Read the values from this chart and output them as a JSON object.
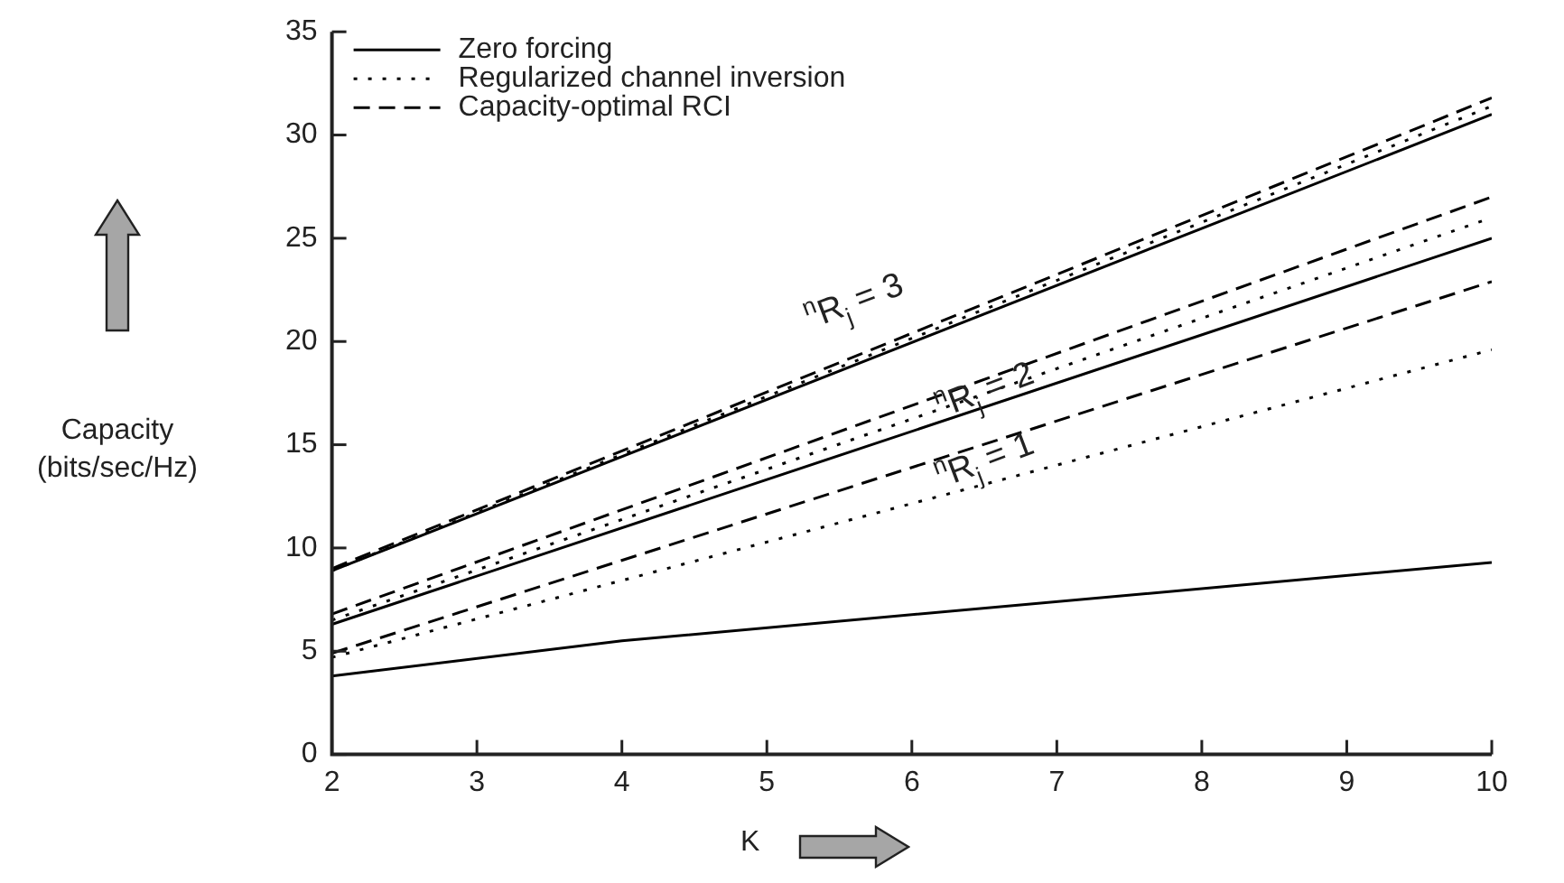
{
  "chart_data": {
    "type": "line",
    "xlabel": "K",
    "ylabel": "Capacity\n(bits/sec/Hz)",
    "xlim": [
      2,
      10
    ],
    "xticks": [
      2,
      3,
      4,
      5,
      6,
      7,
      8,
      9,
      10
    ],
    "ylim": [
      0,
      35
    ],
    "yticks": [
      0,
      5,
      10,
      15,
      20,
      25,
      30,
      35
    ],
    "grid": false,
    "legend": "top left",
    "marker": "none",
    "series": [
      {
        "name": "Zero forcing",
        "color": "#000000",
        "line_style": "solid",
        "x": [
          2,
          10
        ],
        "values": [
          8.9,
          31.0
        ]
      },
      {
        "name": "Regularized channel inversion",
        "color": "#000000",
        "line_style": "dotted",
        "x": [
          2,
          10
        ],
        "values": [
          8.9,
          31.4
        ]
      },
      {
        "name": "Capacity-optimal RCI",
        "color": "#000000",
        "line_style": "dashed",
        "x": [
          2,
          10
        ],
        "values": [
          9.0,
          31.8
        ]
      },
      {
        "color": "#000000",
        "line_style": "solid",
        "x": [
          2,
          10
        ],
        "values": [
          6.3,
          25.0
        ]
      },
      {
        "color": "#000000",
        "line_style": "dotted",
        "x": [
          2,
          10
        ],
        "values": [
          6.5,
          26.0
        ]
      },
      {
        "color": "#000000",
        "line_style": "dashed",
        "x": [
          2,
          10
        ],
        "values": [
          6.8,
          27.0
        ]
      },
      {
        "color": "#000000",
        "line_style": "solid",
        "x": [
          2,
          4,
          10
        ],
        "values": [
          3.8,
          5.5,
          9.3
        ]
      },
      {
        "color": "#000000",
        "line_style": "dotted",
        "x": [
          2,
          10
        ],
        "values": [
          4.7,
          19.6
        ]
      },
      {
        "color": "#000000",
        "line_style": "dashed",
        "x": [
          2,
          10
        ],
        "values": [
          4.9,
          22.9
        ]
      }
    ],
    "annotations": [
      "$^{n}$R$_{j}$ = 3",
      "$^{n}$R$_{j}$ = 2",
      "$^{n}$R$_{j}$ = 1"
    ]
  }
}
